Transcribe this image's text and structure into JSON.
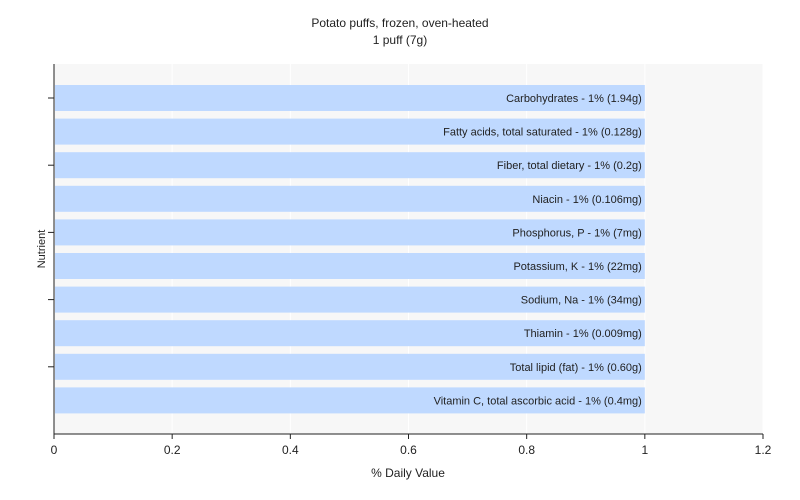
{
  "chart_data": {
    "type": "bar",
    "orientation": "horizontal",
    "title": "Potato puffs, frozen, oven-heated",
    "subtitle": "1 puff (7g)",
    "xlabel": "% Daily Value",
    "ylabel": "Nutrient",
    "xlim": [
      0,
      1.2
    ],
    "xticks": [
      "0",
      "0.2",
      "0.4",
      "0.6",
      "0.8",
      "1",
      "1.2"
    ],
    "grid": true,
    "bar_color": "#bfd9ff",
    "categories": [
      "Carbohydrates",
      "Fatty acids, total saturated",
      "Fiber, total dietary",
      "Niacin",
      "Phosphorus, P",
      "Potassium, K",
      "Sodium, Na",
      "Thiamin",
      "Total lipid (fat)",
      "Vitamin C, total ascorbic acid"
    ],
    "values": [
      1,
      1,
      1,
      1,
      1,
      1,
      1,
      1,
      1,
      1
    ],
    "bar_labels": [
      "Carbohydrates - 1% (1.94g)",
      "Fatty acids, total saturated - 1% (0.128g)",
      "Fiber, total dietary - 1% (0.2g)",
      "Niacin - 1% (0.106mg)",
      "Phosphorus, P - 1% (7mg)",
      "Potassium, K - 1% (22mg)",
      "Sodium, Na - 1% (34mg)",
      "Thiamin - 1% (0.009mg)",
      "Total lipid (fat) - 1% (0.60g)",
      "Vitamin C, total ascorbic acid - 1% (0.4mg)"
    ]
  }
}
